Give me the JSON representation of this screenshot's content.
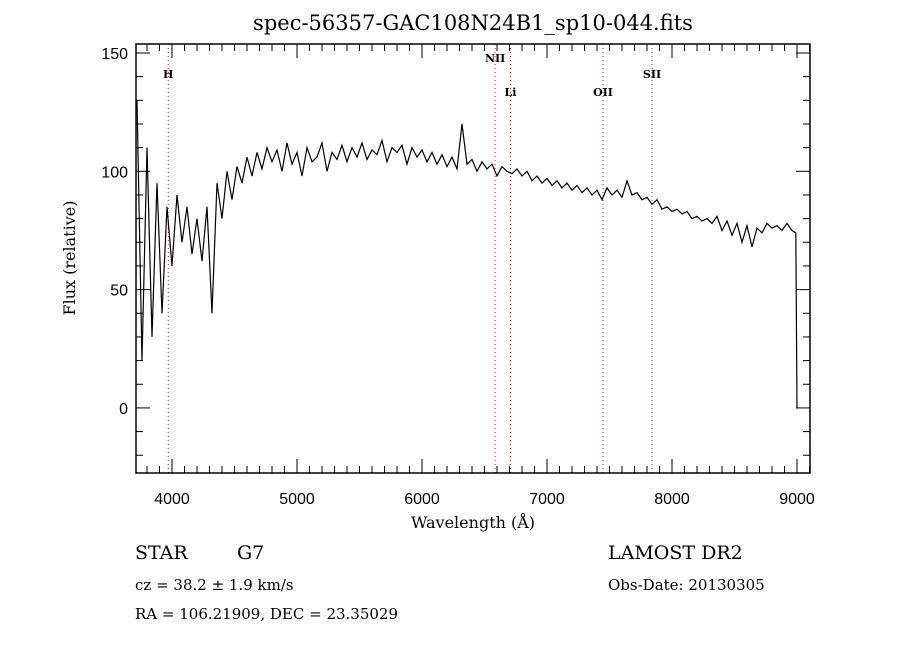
{
  "chart_data": {
    "type": "line",
    "title": "spec-56357-GAC108N24B1_sp10-044.fits",
    "xlabel": "Wavelength (Å)",
    "ylabel": "Flux (relative)",
    "xlim": [
      3712,
      9104
    ],
    "ylim": [
      -27.5,
      153.8
    ],
    "xticks": [
      4000,
      5000,
      6000,
      7000,
      8000,
      9000
    ],
    "yticks": [
      0,
      50,
      100,
      150
    ],
    "x_minor_step": 100,
    "y_minor_step": 10,
    "grid": false,
    "line_color": "#000000",
    "marker_color": "#8b3a3a",
    "lines": [
      {
        "label": "H",
        "wavelength": 3970
      },
      {
        "label": "NII",
        "wavelength": 6585
      },
      {
        "label": "Li",
        "wavelength": 6708
      },
      {
        "label": "OII",
        "wavelength": 7448
      },
      {
        "label": "SII",
        "wavelength": 7840
      }
    ],
    "series": [
      {
        "name": "flux",
        "x": [
          3720,
          3760,
          3800,
          3840,
          3880,
          3920,
          3960,
          4000,
          4040,
          4080,
          4120,
          4160,
          4200,
          4240,
          4280,
          4320,
          4360,
          4400,
          4440,
          4480,
          4520,
          4560,
          4600,
          4640,
          4680,
          4720,
          4760,
          4800,
          4840,
          4880,
          4920,
          4960,
          5000,
          5040,
          5080,
          5120,
          5160,
          5200,
          5240,
          5280,
          5320,
          5360,
          5400,
          5440,
          5480,
          5520,
          5560,
          5600,
          5640,
          5680,
          5720,
          5760,
          5800,
          5840,
          5880,
          5920,
          5960,
          6000,
          6040,
          6080,
          6120,
          6160,
          6200,
          6240,
          6280,
          6320,
          6360,
          6400,
          6440,
          6480,
          6520,
          6560,
          6600,
          6640,
          6680,
          6720,
          6760,
          6800,
          6840,
          6880,
          6920,
          6960,
          7000,
          7040,
          7080,
          7120,
          7160,
          7200,
          7240,
          7280,
          7320,
          7360,
          7400,
          7440,
          7480,
          7520,
          7560,
          7600,
          7640,
          7680,
          7720,
          7760,
          7800,
          7840,
          7880,
          7920,
          7960,
          8000,
          8040,
          8080,
          8120,
          8160,
          8200,
          8240,
          8280,
          8320,
          8360,
          8400,
          8440,
          8480,
          8520,
          8560,
          8600,
          8640,
          8680,
          8720,
          8760,
          8800,
          8840,
          8880,
          8920,
          8960,
          8990,
          9000
        ],
        "y": [
          130,
          20,
          110,
          30,
          95,
          40,
          85,
          60,
          90,
          70,
          85,
          65,
          80,
          62,
          85,
          40,
          95,
          80,
          100,
          88,
          102,
          95,
          106,
          98,
          108,
          101,
          110,
          104,
          109,
          100,
          112,
          103,
          108,
          98,
          110,
          104,
          106,
          112,
          100,
          108,
          105,
          111,
          104,
          110,
          106,
          112,
          105,
          109,
          107,
          113,
          104,
          110,
          108,
          111,
          103,
          110,
          106,
          109,
          104,
          108,
          103,
          107,
          102,
          106,
          101,
          120,
          103,
          105,
          100,
          104,
          101,
          103,
          98,
          102,
          100,
          99,
          101,
          98,
          100,
          96,
          98,
          95,
          97,
          94,
          96,
          93,
          95,
          92,
          94,
          91,
          93,
          90,
          92,
          88,
          93,
          90,
          92,
          89,
          96,
          90,
          91,
          88,
          89,
          86,
          88,
          84,
          85,
          83,
          84,
          82,
          83,
          80,
          81,
          79,
          80,
          78,
          81,
          75,
          79,
          73,
          78,
          70,
          77,
          68,
          76,
          74,
          78,
          76,
          77,
          75,
          78,
          75,
          74,
          0
        ]
      }
    ]
  },
  "annotations": {
    "object_class": "STAR",
    "subclass": "G7",
    "survey": "LAMOST DR2",
    "redshift": "cz = 38.2 ± 1.9 km/s",
    "obs_date": "Obs-Date: 20130305",
    "coords": "RA = 106.21909, DEC =  23.35029"
  }
}
